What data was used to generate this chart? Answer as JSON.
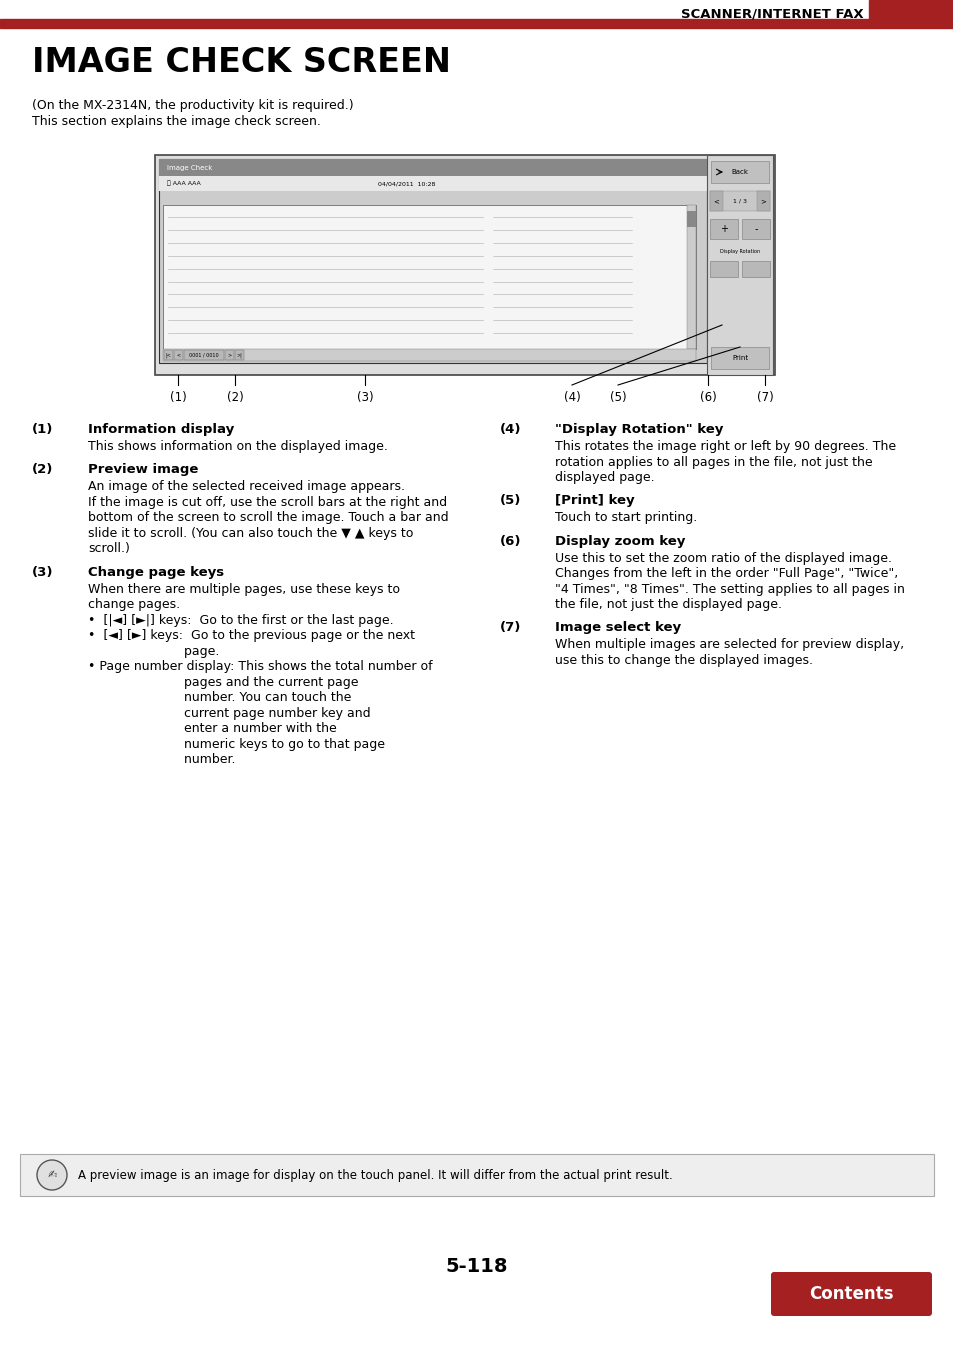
{
  "page_title": "SCANNER/INTERNET FAX",
  "section_title": "IMAGE CHECK SCREEN",
  "subtitle_line1": "(On the MX-2314N, the productivity kit is required.)",
  "subtitle_line2": "This section explains the image check screen.",
  "header_color": "#a52020",
  "background_color": "#ffffff",
  "items": [
    {
      "num": "(1)",
      "title": "Information display",
      "body_lines": [
        "This shows information on the displayed image."
      ]
    },
    {
      "num": "(2)",
      "title": "Preview image",
      "body_lines": [
        "An image of the selected received image appears.",
        "If the image is cut off, use the scroll bars at the right and",
        "bottom of the screen to scroll the image. Touch a bar and",
        "slide it to scroll. (You can also touch the ▼ ▲ keys to",
        "scroll.)"
      ]
    },
    {
      "num": "(3)",
      "title": "Change page keys",
      "body_lines": [
        "When there are multiple pages, use these keys to",
        "change pages.",
        "•  [|◄] [►|] keys:  Go to the first or the last page.",
        "•  [◄] [►] keys:  Go to the previous page or the next",
        "                        page.",
        "• Page number display: This shows the total number of",
        "                        pages and the current page",
        "                        number. You can touch the",
        "                        current page number key and",
        "                        enter a number with the",
        "                        numeric keys to go to that page",
        "                        number."
      ]
    },
    {
      "num": "(4)",
      "title": "\"Display Rotation\" key",
      "body_lines": [
        "This rotates the image right or left by 90 degrees. The",
        "rotation applies to all pages in the file, not just the",
        "displayed page."
      ]
    },
    {
      "num": "(5)",
      "title": "[Print] key",
      "body_lines": [
        "Touch to start printing."
      ]
    },
    {
      "num": "(6)",
      "title": "Display zoom key",
      "body_lines": [
        "Use this to set the zoom ratio of the displayed image.",
        "Changes from the left in the order \"Full Page\", \"Twice\",",
        "\"4 Times\", \"8 Times\". The setting applies to all pages in",
        "the file, not just the displayed page."
      ]
    },
    {
      "num": "(7)",
      "title": "Image select key",
      "body_lines": [
        "When multiple images are selected for preview display,",
        "use this to change the displayed images."
      ]
    }
  ],
  "note_text": "A preview image is an image for display on the touch panel. It will differ from the actual print result.",
  "page_number": "5-118",
  "contents_button_color": "#a52020",
  "contents_button_text": "Contents"
}
